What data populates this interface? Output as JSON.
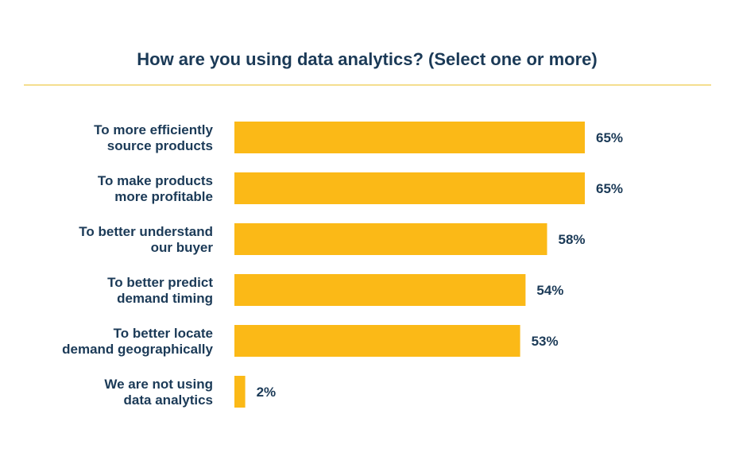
{
  "chart_data": {
    "type": "bar",
    "orientation": "horizontal",
    "title": "How are you using data analytics? (Select one or more)",
    "categories": [
      [
        "To more efficiently",
        "source products"
      ],
      [
        "To make products",
        "more profitable"
      ],
      [
        "To better understand",
        "our buyer"
      ],
      [
        "To better predict",
        "demand timing"
      ],
      [
        "To better locate",
        "demand geographically"
      ],
      [
        "We are not using",
        "data analytics"
      ]
    ],
    "values": [
      65,
      65,
      58,
      54,
      53,
      2
    ],
    "value_labels": [
      "65%",
      "65%",
      "58%",
      "54%",
      "53%",
      "2%"
    ],
    "unit": "%",
    "xlim": [
      0,
      65
    ],
    "xlabel": "",
    "ylabel": "",
    "grid": false,
    "legend": "none"
  },
  "colors": {
    "bar": "#fbb917",
    "text": "#1b3a57",
    "divider": "#f0d36a",
    "background": "#ffffff"
  }
}
